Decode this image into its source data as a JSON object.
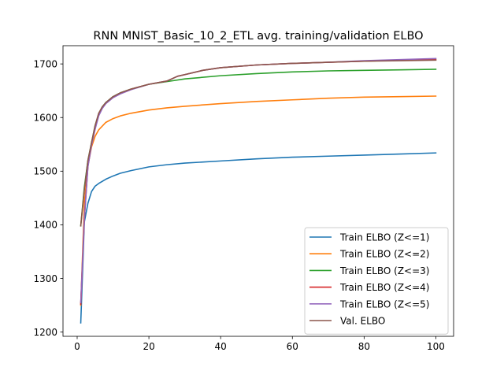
{
  "chart_data": {
    "type": "line",
    "title": "RNN MNIST_Basic_10_2_ETL avg. training/validation ELBO",
    "xlabel": "",
    "ylabel": "",
    "xlim": [
      -3.95,
      104.95
    ],
    "ylim": [
      1192,
      1734
    ],
    "xticks": [
      0,
      20,
      40,
      60,
      80,
      100
    ],
    "yticks": [
      1200,
      1300,
      1400,
      1500,
      1600,
      1700
    ],
    "grid": false,
    "legend_position": "lower-right",
    "series": [
      {
        "name": "Train ELBO (Z<=1)",
        "color": "#1f77b4",
        "x": [
          1,
          2,
          3,
          4,
          5,
          6,
          8,
          10,
          12,
          15,
          20,
          25,
          30,
          40,
          50,
          60,
          70,
          80,
          90,
          100
        ],
        "y": [
          1217,
          1405,
          1440,
          1462,
          1472,
          1477,
          1485,
          1491,
          1496,
          1501,
          1508,
          1512,
          1515,
          1519,
          1523,
          1526,
          1528,
          1530,
          1532,
          1534
        ]
      },
      {
        "name": "Train ELBO (Z<=2)",
        "color": "#ff7f0e",
        "x": [
          1,
          2,
          3,
          4,
          5,
          6,
          8,
          10,
          12,
          15,
          20,
          25,
          30,
          40,
          50,
          60,
          70,
          80,
          90,
          100
        ],
        "y": [
          1250,
          1440,
          1510,
          1545,
          1565,
          1577,
          1591,
          1598,
          1603,
          1608,
          1614,
          1618,
          1621,
          1626,
          1630,
          1633,
          1636,
          1638,
          1639,
          1640
        ]
      },
      {
        "name": "Train ELBO (Z<=3)",
        "color": "#2ca02c",
        "x": [
          1,
          2,
          3,
          4,
          5,
          6,
          7,
          8,
          10,
          12,
          15,
          20,
          25,
          30,
          40,
          50,
          60,
          70,
          80,
          90,
          100
        ],
        "y": [
          1398,
          1470,
          1520,
          1553,
          1585,
          1607,
          1620,
          1628,
          1639,
          1646,
          1653,
          1662,
          1667,
          1672,
          1678,
          1682,
          1685,
          1687,
          1688,
          1689,
          1690
        ]
      },
      {
        "name": "Train ELBO (Z<=4)",
        "color": "#d62728",
        "x": [
          1,
          2,
          3,
          4,
          5,
          6,
          7,
          8,
          10,
          12,
          15,
          20,
          25,
          28,
          30,
          35,
          40,
          50,
          60,
          70,
          80,
          90,
          100
        ],
        "y": [
          1252,
          1410,
          1510,
          1550,
          1580,
          1605,
          1618,
          1627,
          1638,
          1645,
          1653,
          1662,
          1668,
          1677,
          1680,
          1688,
          1693,
          1698,
          1701,
          1703,
          1705,
          1707,
          1708
        ]
      },
      {
        "name": "Train ELBO (Z<=5)",
        "color": "#9467bd",
        "x": [
          1,
          2,
          3,
          4,
          5,
          6,
          7,
          8,
          10,
          12,
          15,
          20,
          25,
          28,
          30,
          35,
          40,
          50,
          60,
          70,
          80,
          90,
          100
        ],
        "y": [
          1255,
          1412,
          1508,
          1548,
          1578,
          1603,
          1617,
          1626,
          1637,
          1644,
          1652,
          1662,
          1668,
          1677,
          1680,
          1688,
          1693,
          1698,
          1701,
          1703,
          1706,
          1708,
          1710
        ]
      },
      {
        "name": "Val. ELBO",
        "color": "#8c564b",
        "x": [
          1,
          2,
          3,
          4,
          5,
          6,
          7,
          8,
          10,
          12,
          15,
          20,
          25,
          28,
          30,
          35,
          40,
          50,
          60,
          70,
          80,
          90,
          100
        ],
        "y": [
          1398,
          1465,
          1520,
          1553,
          1585,
          1608,
          1620,
          1628,
          1639,
          1646,
          1653,
          1662,
          1668,
          1677,
          1680,
          1688,
          1693,
          1698,
          1701,
          1703,
          1705,
          1706,
          1707
        ]
      }
    ]
  }
}
